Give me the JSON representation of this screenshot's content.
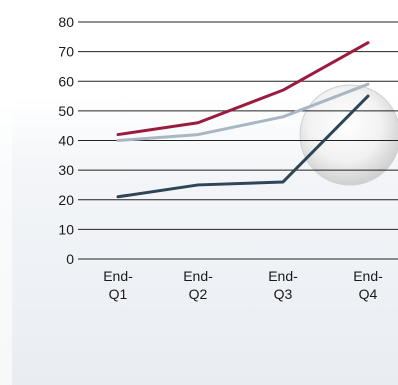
{
  "chart_data": {
    "type": "line",
    "categories": [
      "End-\nQ1",
      "End-\nQ2",
      "End-\nQ3",
      "End-\nQ4"
    ],
    "ylim": [
      0,
      80
    ],
    "yticks": [
      0,
      10,
      20,
      30,
      40,
      50,
      60,
      70,
      80
    ],
    "grid": true,
    "series": [
      {
        "values": [
          42,
          46,
          57,
          73
        ],
        "color": "#9b1b3f"
      },
      {
        "values": [
          40,
          42,
          48,
          59
        ],
        "color": "#a9b6c3"
      },
      {
        "values": [
          21,
          25,
          26,
          55
        ],
        "color": "#2f4556"
      }
    ]
  }
}
